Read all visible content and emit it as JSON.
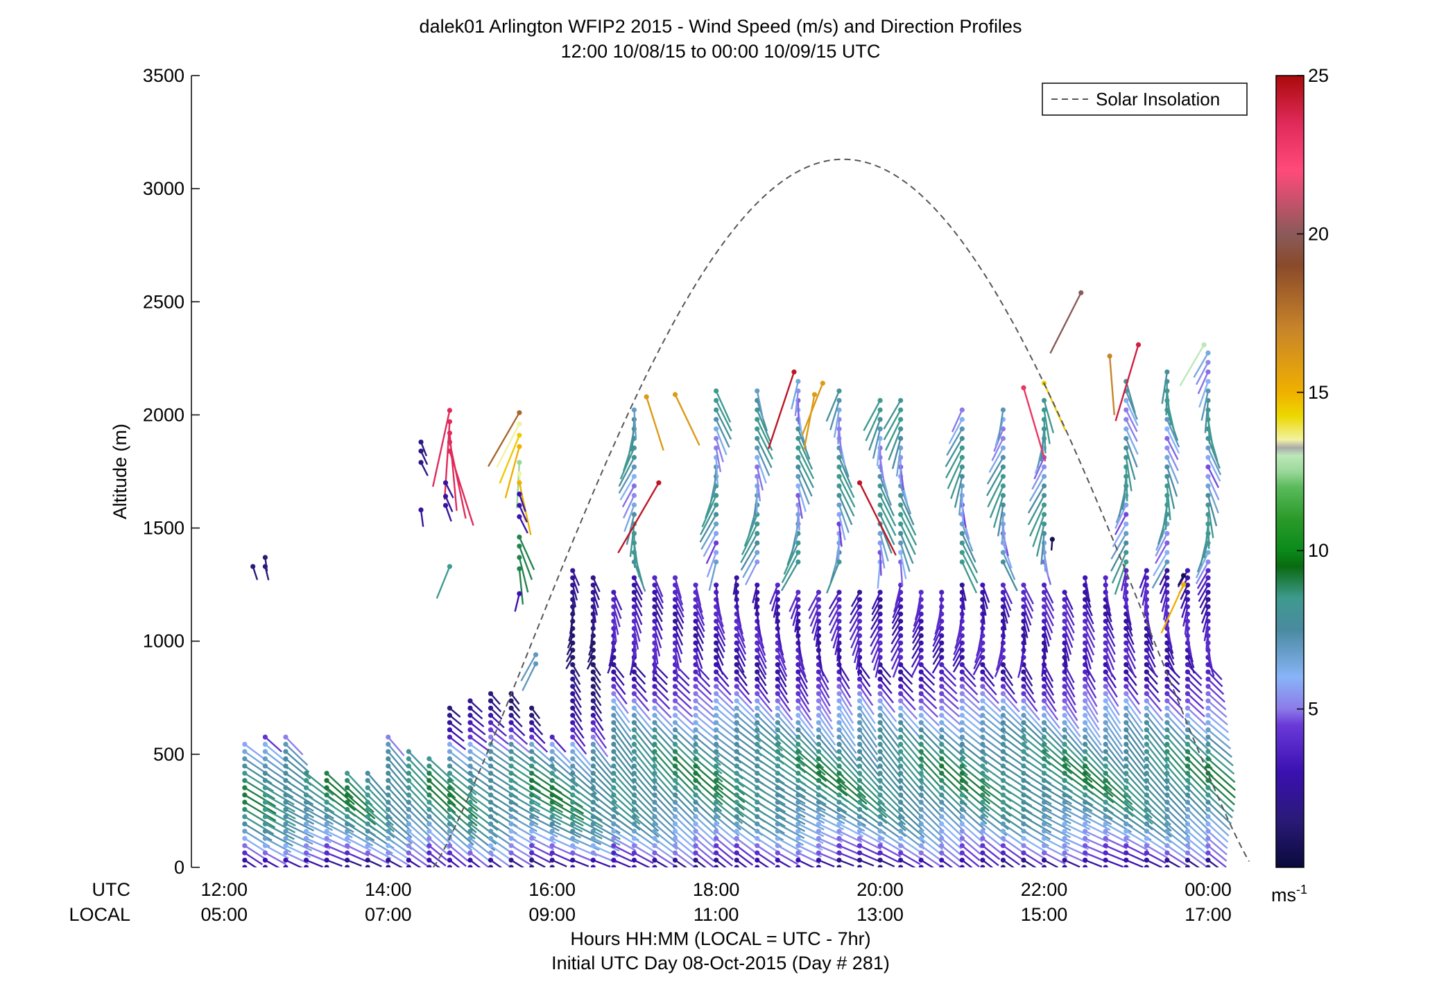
{
  "chart_data": {
    "type": "scatter",
    "title": "dalek01 Arlington WFIP2 2015 - Wind Speed (m/s) and Direction Profiles",
    "subtitle": "12:00 10/08/15 to 00:00 10/09/15  UTC",
    "ylabel": "Altitude (m)",
    "xlabel": "Hours HH:MM  (LOCAL = UTC - 7hr)",
    "xlabel2": "Initial UTC Day 08-Oct-2015 (Day # 281)",
    "ylim": [
      0,
      3500
    ],
    "xlim": [
      11.6,
      24.55
    ],
    "y_ticks": [
      "0",
      "500",
      "1000",
      "1500",
      "2000",
      "2500",
      "3000",
      "3500"
    ],
    "x_row_labels": {
      "utc": "UTC",
      "local": "LOCAL"
    },
    "x_ticks": [
      {
        "hour": 12,
        "utc": "12:00",
        "local": "05:00"
      },
      {
        "hour": 14,
        "utc": "14:00",
        "local": "07:00"
      },
      {
        "hour": 16,
        "utc": "16:00",
        "local": "09:00"
      },
      {
        "hour": 18,
        "utc": "18:00",
        "local": "11:00"
      },
      {
        "hour": 20,
        "utc": "20:00",
        "local": "13:00"
      },
      {
        "hour": 22,
        "utc": "22:00",
        "local": "15:00"
      },
      {
        "hour": 24,
        "utc": "00:00",
        "local": "17:00"
      }
    ],
    "legend": {
      "label": "Solar Insolation",
      "placement": "top-right"
    },
    "solar_insolation": {
      "rise_hour": 14.55,
      "set_hour": 24.55,
      "peak_hour": 19.95,
      "peak_altitude": 3130
    },
    "colorbar": {
      "range": [
        0,
        25
      ],
      "ticks": [
        "5",
        "10",
        "15",
        "20",
        "25"
      ],
      "unit": "ms",
      "unit_exponent": "-1",
      "stops": [
        [
          0.0,
          "#0a0a3c"
        ],
        [
          0.06,
          "#2a1a78"
        ],
        [
          0.12,
          "#3a10b0"
        ],
        [
          0.18,
          "#6a3ad8"
        ],
        [
          0.2,
          "#8c7ae8"
        ],
        [
          0.24,
          "#88b4f8"
        ],
        [
          0.3,
          "#4a8aa0"
        ],
        [
          0.34,
          "#3e9a8e"
        ],
        [
          0.38,
          "#0a6a10"
        ],
        [
          0.4,
          "#0a8a1a"
        ],
        [
          0.44,
          "#2a9a2a"
        ],
        [
          0.48,
          "#5aba5a"
        ],
        [
          0.5,
          "#9ad89a"
        ],
        [
          0.52,
          "#bce8b8"
        ],
        [
          0.53,
          "#aaaaaa"
        ],
        [
          0.54,
          "#f2f2a2"
        ],
        [
          0.57,
          "#ecd800"
        ],
        [
          0.6,
          "#f0b000"
        ],
        [
          0.68,
          "#c8842a"
        ],
        [
          0.76,
          "#8a4a2a"
        ],
        [
          0.8,
          "#8a5a5a"
        ],
        [
          0.88,
          "#ff4a7a"
        ],
        [
          0.94,
          "#e02a5a"
        ],
        [
          1.0,
          "#aa0a0a"
        ]
      ]
    },
    "profile_times": [
      12.25,
      12.5,
      12.75,
      13.0,
      13.25,
      13.5,
      13.75,
      14.0,
      14.25,
      14.5,
      14.75,
      15.0,
      15.25,
      15.5,
      15.75,
      16.0,
      16.25,
      16.5,
      16.75,
      17.0,
      17.25,
      17.5,
      17.75,
      18.0,
      18.25,
      18.5,
      18.75,
      19.0,
      19.25,
      19.5,
      19.75,
      20.0,
      20.25,
      20.5,
      20.75,
      21.0,
      21.25,
      21.5,
      21.75,
      22.0,
      22.25,
      22.5,
      22.75,
      23.0,
      23.25,
      23.5,
      23.75,
      24.0
    ],
    "profile_tops_m": [
      560,
      590,
      590,
      430,
      420,
      440,
      420,
      580,
      540,
      490,
      730,
      750,
      790,
      780,
      720,
      600,
      1320,
      1300,
      1240,
      1300,
      1300,
      1290,
      1260,
      1260,
      1290,
      1250,
      1250,
      1240,
      1230,
      1240,
      1230,
      1230,
      1250,
      1230,
      1220,
      1250,
      1250,
      1260,
      1250,
      1250,
      1240,
      1300,
      1300,
      1330,
      1330,
      1330,
      1330,
      1330
    ],
    "upper_profiles": [
      {
        "hour": 19.0,
        "from_m": 1350,
        "to_m": 2180
      },
      {
        "hour": 19.5,
        "from_m": 1350,
        "to_m": 2130
      },
      {
        "hour": 20.0,
        "from_m": 1350,
        "to_m": 2080
      },
      {
        "hour": 20.25,
        "from_m": 1350,
        "to_m": 2080
      },
      {
        "hour": 21.0,
        "from_m": 1350,
        "to_m": 2030
      },
      {
        "hour": 23.5,
        "from_m": 1350,
        "to_m": 2220
      },
      {
        "hour": 24.0,
        "from_m": 1350,
        "to_m": 2290
      },
      {
        "hour": 18.0,
        "from_m": 1350,
        "to_m": 2120
      },
      {
        "hour": 18.5,
        "from_m": 1350,
        "to_m": 2130
      },
      {
        "hour": 17.0,
        "from_m": 1350,
        "to_m": 2050
      },
      {
        "hour": 21.5,
        "from_m": 1350,
        "to_m": 2050
      },
      {
        "hour": 22.0,
        "from_m": 1350,
        "to_m": 2080
      },
      {
        "hour": 23.0,
        "from_m": 1350,
        "to_m": 2170
      }
    ],
    "sparse_points": [
      {
        "hour": 12.35,
        "altitude": 1330,
        "speed": 1.5
      },
      {
        "hour": 12.5,
        "altitude": 1370,
        "speed": 1.5
      },
      {
        "hour": 12.5,
        "altitude": 1330,
        "speed": 1.5
      },
      {
        "hour": 14.4,
        "altitude": 1880,
        "speed": 1.8
      },
      {
        "hour": 14.4,
        "altitude": 1840,
        "speed": 1.8
      },
      {
        "hour": 14.4,
        "altitude": 1790,
        "speed": 1.8
      },
      {
        "hour": 14.4,
        "altitude": 1580,
        "speed": 2.5
      },
      {
        "hour": 14.75,
        "altitude": 2020,
        "speed": 23.5
      },
      {
        "hour": 14.75,
        "altitude": 1970,
        "speed": 23.5
      },
      {
        "hour": 14.75,
        "altitude": 1920,
        "speed": 23.5
      },
      {
        "hour": 14.75,
        "altitude": 1880,
        "speed": 23.5
      },
      {
        "hour": 14.75,
        "altitude": 1840,
        "speed": 23.5
      },
      {
        "hour": 14.7,
        "altitude": 1700,
        "speed": 2.5
      },
      {
        "hour": 14.7,
        "altitude": 1640,
        "speed": 2.5
      },
      {
        "hour": 14.7,
        "altitude": 1600,
        "speed": 2.5
      },
      {
        "hour": 14.75,
        "altitude": 1330,
        "speed": 8.5
      },
      {
        "hour": 15.6,
        "altitude": 2010,
        "speed": 18
      },
      {
        "hour": 15.6,
        "altitude": 1960,
        "speed": 13.5
      },
      {
        "hour": 15.6,
        "altitude": 1910,
        "speed": 14.5
      },
      {
        "hour": 15.6,
        "altitude": 1860,
        "speed": 15
      },
      {
        "hour": 15.6,
        "altitude": 1790,
        "speed": 12.5
      },
      {
        "hour": 15.6,
        "altitude": 1740,
        "speed": 13.5
      },
      {
        "hour": 15.6,
        "altitude": 1700,
        "speed": 15
      },
      {
        "hour": 15.6,
        "altitude": 1650,
        "speed": 3
      },
      {
        "hour": 15.6,
        "altitude": 1600,
        "speed": 3
      },
      {
        "hour": 15.6,
        "altitude": 1550,
        "speed": 3
      },
      {
        "hour": 15.6,
        "altitude": 1460,
        "speed": 9
      },
      {
        "hour": 15.6,
        "altitude": 1420,
        "speed": 9
      },
      {
        "hour": 15.6,
        "altitude": 1370,
        "speed": 9
      },
      {
        "hour": 15.6,
        "altitude": 1320,
        "speed": 9
      },
      {
        "hour": 15.6,
        "altitude": 1210,
        "speed": 3
      },
      {
        "hour": 15.8,
        "altitude": 940,
        "speed": 7
      },
      {
        "hour": 15.8,
        "altitude": 900,
        "speed": 7
      },
      {
        "hour": 17.15,
        "altitude": 2080,
        "speed": 16
      },
      {
        "hour": 17.5,
        "altitude": 2090,
        "speed": 16
      },
      {
        "hour": 17.3,
        "altitude": 1700,
        "speed": 24.5
      },
      {
        "hour": 18.95,
        "altitude": 2190,
        "speed": 24.5
      },
      {
        "hour": 19.3,
        "altitude": 2140,
        "speed": 16
      },
      {
        "hour": 19.2,
        "altitude": 2090,
        "speed": 16
      },
      {
        "hour": 19.75,
        "altitude": 1700,
        "speed": 24.5
      },
      {
        "hour": 22.45,
        "altitude": 2540,
        "speed": 20
      },
      {
        "hour": 22.8,
        "altitude": 2260,
        "speed": 17
      },
      {
        "hour": 23.15,
        "altitude": 2310,
        "speed": 24
      },
      {
        "hour": 23.95,
        "altitude": 2310,
        "speed": 13
      },
      {
        "hour": 21.75,
        "altitude": 2120,
        "speed": 23
      },
      {
        "hour": 22.0,
        "altitude": 2140,
        "speed": 14.5
      },
      {
        "hour": 23.7,
        "altitude": 1250,
        "speed": 15
      },
      {
        "hour": 23.7,
        "altitude": 1290,
        "speed": 0.5
      },
      {
        "hour": 22.1,
        "altitude": 1450,
        "speed": 0.5
      }
    ]
  }
}
